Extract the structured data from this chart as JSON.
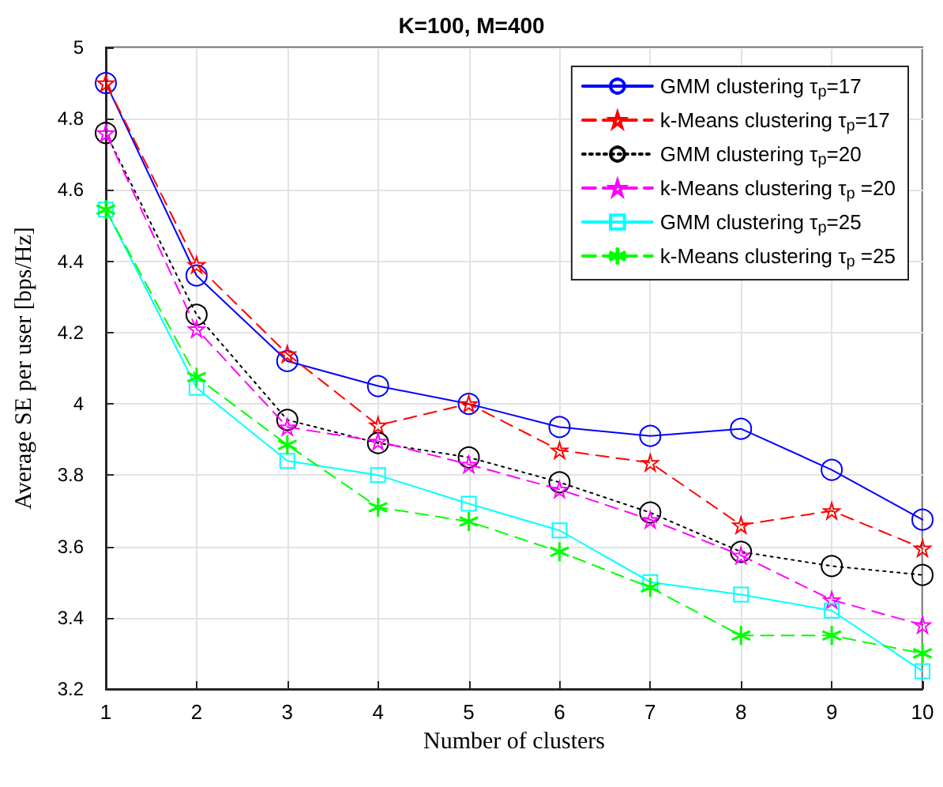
{
  "chart_data": {
    "type": "line",
    "title": "K=100, M=400",
    "xlabel": "Number of clusters",
    "ylabel": "Average SE per user [bps/Hz]",
    "x": [
      1,
      2,
      3,
      4,
      5,
      6,
      7,
      8,
      9,
      10
    ],
    "series": [
      {
        "name": "GMM clustering τ$_{p}$=17",
        "color": "#0000ff",
        "marker": "circle",
        "line_style": "solid",
        "values": [
          4.9,
          4.36,
          4.12,
          4.05,
          4.0,
          3.935,
          3.91,
          3.93,
          3.815,
          3.675
        ]
      },
      {
        "name": "k-Means clustering τ$_{p}$=17",
        "color": "#ff0000",
        "marker": "star",
        "line_style": "dashed",
        "values": [
          4.9,
          4.39,
          4.14,
          3.94,
          4.0,
          3.87,
          3.835,
          3.66,
          3.7,
          3.595
        ]
      },
      {
        "name": "GMM clustering τ$_{p}$=20",
        "color": "#000000",
        "marker": "circle",
        "line_style": "dotted",
        "values": [
          4.76,
          4.25,
          3.955,
          3.89,
          3.85,
          3.78,
          3.695,
          3.585,
          3.545,
          3.52
        ]
      },
      {
        "name": "k-Means clustering τ$_{p}$ =20",
        "color": "#ff00ff",
        "marker": "star",
        "line_style": "dashed",
        "values": [
          4.76,
          4.21,
          3.935,
          3.895,
          3.83,
          3.76,
          3.675,
          3.575,
          3.45,
          3.38
        ]
      },
      {
        "name": "GMM clustering τ$_{p}$=25",
        "color": "#00ffff",
        "marker": "square",
        "line_style": "solid",
        "values": [
          4.545,
          4.045,
          3.84,
          3.8,
          3.72,
          3.645,
          3.5,
          3.465,
          3.42,
          3.25
        ]
      },
      {
        "name": "k-Means clustering τ$_{p}$ =25",
        "color": "#00ff00",
        "marker": "cross",
        "line_style": "dashed",
        "values": [
          4.545,
          4.075,
          3.885,
          3.71,
          3.67,
          3.585,
          3.485,
          3.35,
          3.35,
          3.3
        ]
      }
    ],
    "xlim": [
      1,
      10
    ],
    "xticks": [
      1,
      2,
      3,
      4,
      5,
      6,
      7,
      8,
      9,
      10
    ],
    "ylim": [
      3.2,
      5
    ],
    "yticks": [
      3.2,
      3.4,
      3.6,
      3.8,
      4,
      4.2,
      4.4,
      4.6,
      4.8,
      5
    ],
    "grid": true,
    "legend": "top right"
  }
}
